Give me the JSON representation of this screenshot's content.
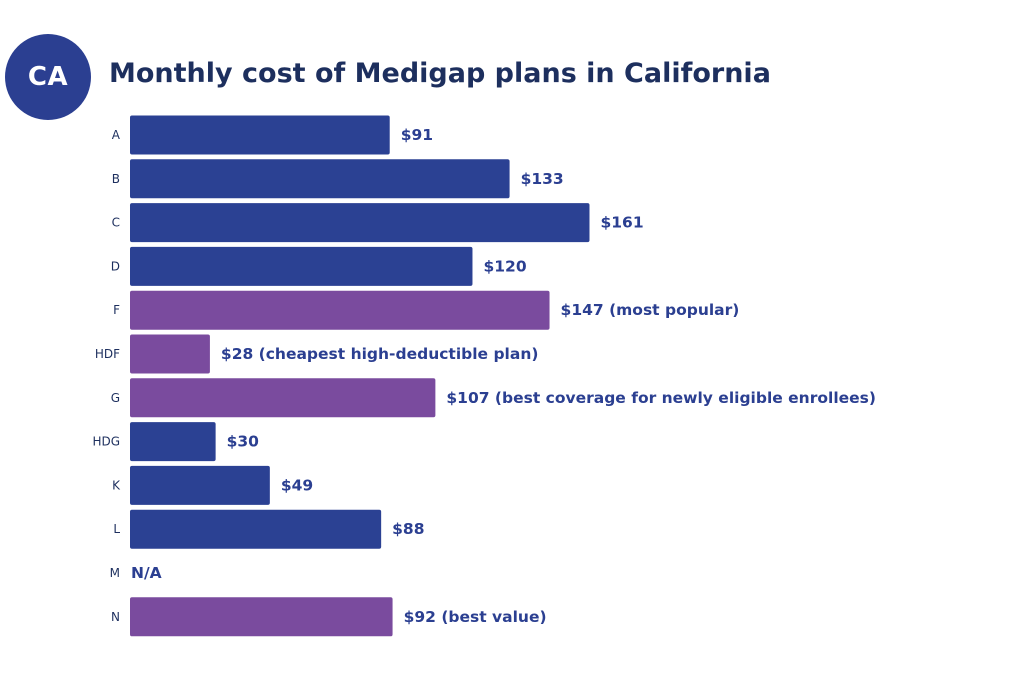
{
  "badge": {
    "text": "CA"
  },
  "colors": {
    "standard_bar": "#2b4193",
    "highlight_bar": "#7a4b9e",
    "label_text": "#2b3f91",
    "title_text": "#1d2f5e",
    "badge_bg": "#2b3f91"
  },
  "chart_data": {
    "type": "bar",
    "orientation": "horizontal",
    "title": "Monthly cost of Medigap plans in California",
    "xlabel": "",
    "ylabel": "",
    "xlim": [
      0,
      170
    ],
    "grid": false,
    "unit": "$ per month",
    "categories": [
      "A",
      "B",
      "C",
      "D",
      "F",
      "HDF",
      "G",
      "HDG",
      "K",
      "L",
      "M",
      "N"
    ],
    "values": [
      91,
      133,
      161,
      120,
      147,
      28,
      107,
      30,
      49,
      88,
      null,
      92
    ],
    "data_labels": [
      "$91",
      "$133",
      "$161",
      "$120",
      "$147 (most popular)",
      "$28 (cheapest high-deductible plan)",
      "$107 (best coverage for newly eligible enrollees)",
      "$30",
      "$49",
      "$88",
      "N/A",
      "$92 (best value)"
    ],
    "highlighted": [
      false,
      false,
      false,
      false,
      true,
      true,
      true,
      false,
      false,
      false,
      false,
      true
    ]
  }
}
